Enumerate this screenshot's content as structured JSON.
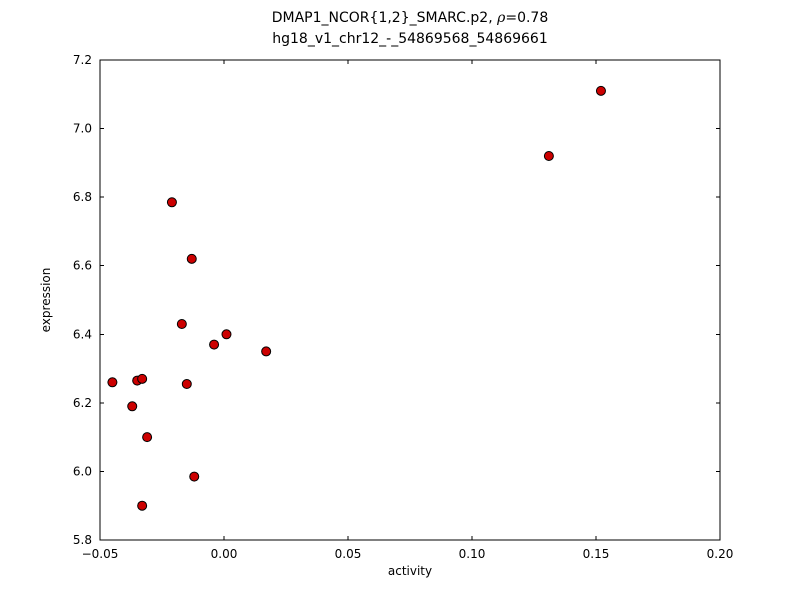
{
  "chart_data": {
    "type": "scatter",
    "title_line1_prefix": "DMAP1_NCOR{1,2}_SMARC.p2, ",
    "title_rho": "ρ",
    "title_rho_suffix": "=0.78",
    "title_line2": "hg18_v1_chr12_-_54869568_54869661",
    "xlabel": "activity",
    "ylabel": "expression",
    "xlim": [
      -0.05,
      0.2
    ],
    "ylim": [
      5.8,
      7.2
    ],
    "xticks": [
      -0.05,
      0.0,
      0.05,
      0.1,
      0.15,
      0.2
    ],
    "xtick_labels": [
      "−0.05",
      "0.00",
      "0.05",
      "0.10",
      "0.15",
      "0.20"
    ],
    "yticks": [
      5.8,
      6.0,
      6.2,
      6.4,
      6.6,
      6.8,
      7.0,
      7.2
    ],
    "ytick_labels": [
      "5.8",
      "6.0",
      "6.2",
      "6.4",
      "6.6",
      "6.8",
      "7.0",
      "7.2"
    ],
    "grid": false,
    "legend": null,
    "marker": {
      "fill": "#cc0000",
      "edge": "#000000",
      "radius": 4.5
    },
    "points": [
      [
        -0.045,
        6.26
      ],
      [
        -0.037,
        6.19
      ],
      [
        -0.035,
        6.265
      ],
      [
        -0.033,
        6.27
      ],
      [
        -0.031,
        6.1
      ],
      [
        -0.033,
        5.9
      ],
      [
        -0.021,
        6.785
      ],
      [
        -0.017,
        6.43
      ],
      [
        -0.013,
        6.62
      ],
      [
        -0.015,
        6.255
      ],
      [
        -0.012,
        5.985
      ],
      [
        -0.004,
        6.37
      ],
      [
        0.001,
        6.4
      ],
      [
        0.017,
        6.35
      ],
      [
        0.131,
        6.92
      ],
      [
        0.152,
        7.11
      ]
    ]
  }
}
